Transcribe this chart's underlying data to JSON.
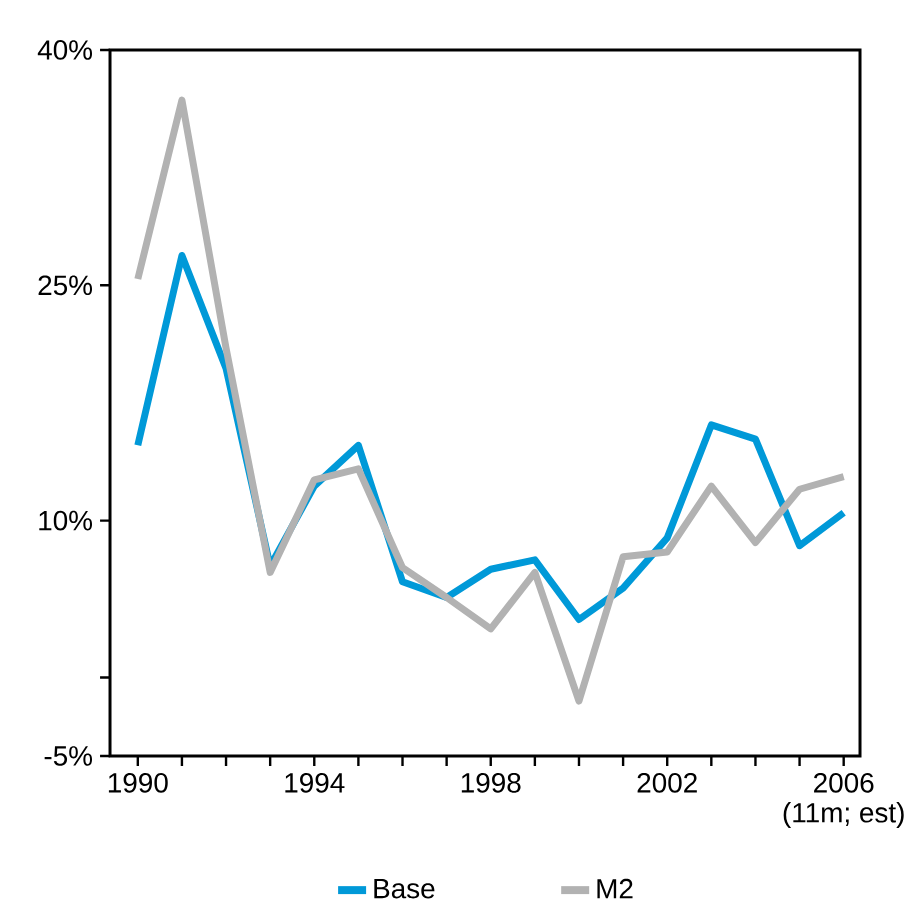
{
  "chart_data": {
    "type": "line",
    "categories": [
      "1990",
      null,
      null,
      null,
      "1994",
      null,
      null,
      null,
      "1998",
      null,
      null,
      null,
      "2002",
      null,
      null,
      null,
      "2006\n(11m; est)"
    ],
    "series": [
      {
        "name": "Base",
        "color": "#0099d8",
        "values": [
          14.8,
          26.9,
          19.7,
          7.1,
          12.2,
          14.8,
          6.1,
          5.1,
          6.9,
          7.5,
          3.7,
          5.7,
          8.9,
          16.1,
          15.2,
          8.4,
          10.5
        ]
      },
      {
        "name": "M2",
        "color": "#b2b2b2",
        "values": [
          25.4,
          36.8,
          21.0,
          6.7,
          12.6,
          13.3,
          7.0,
          5.1,
          3.1,
          6.7,
          -1.5,
          7.7,
          8.0,
          12.2,
          8.6,
          12.0,
          12.8
        ]
      }
    ],
    "ylim": [
      -5,
      40
    ],
    "yticks": [
      {
        "value": -5,
        "label": "-5%"
      },
      {
        "value": 0,
        "label": null
      },
      {
        "value": 10,
        "label": "10%"
      },
      {
        "value": 25,
        "label": "25%"
      },
      {
        "value": 40,
        "label": "40%"
      }
    ],
    "grid": false,
    "legend": "bottom",
    "marker": "none",
    "line_style": "solid"
  }
}
